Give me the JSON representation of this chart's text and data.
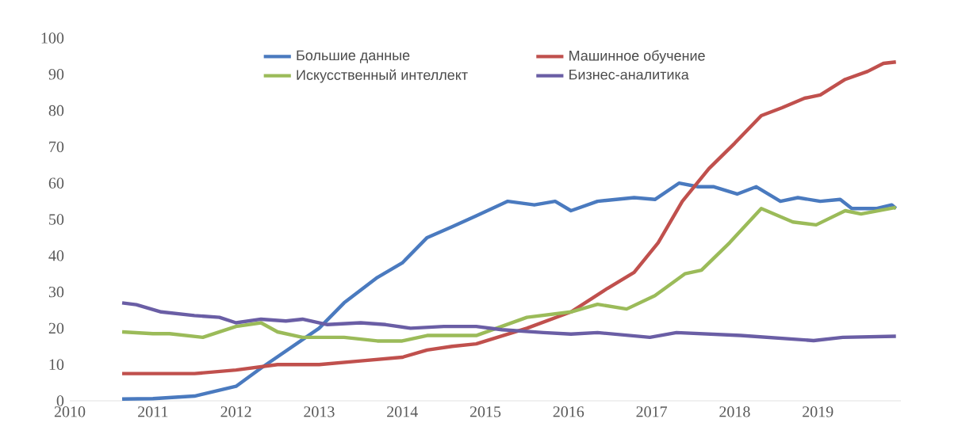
{
  "chart_data": {
    "type": "line",
    "xlim": [
      2010,
      2020
    ],
    "ylim": [
      0,
      100
    ],
    "xticks": [
      2010,
      2011,
      2012,
      2013,
      2014,
      2015,
      2016,
      2017,
      2018,
      2019
    ],
    "yticks": [
      0,
      10,
      20,
      30,
      40,
      50,
      60,
      70,
      80,
      90,
      100
    ],
    "grid": false,
    "legend": "top",
    "marker": "none",
    "line_style": "solid",
    "series": [
      {
        "name": "Большие данные",
        "color": "#4a7abf",
        "x": [
          2010.63,
          2011.0,
          2011.5,
          2012.0,
          2012.3,
          2013.0,
          2013.3,
          2013.7,
          2014.0,
          2014.3,
          2014.6,
          2014.89,
          2015.27,
          2015.59,
          2015.84,
          2016.03,
          2016.35,
          2016.79,
          2017.04,
          2017.33,
          2017.56,
          2017.75,
          2018.03,
          2018.26,
          2018.55,
          2018.76,
          2019.03,
          2019.27,
          2019.41,
          2019.71,
          2019.89,
          2019.94
        ],
        "values": [
          0.5,
          0.6,
          1.3,
          4,
          9,
          20,
          27,
          34,
          38,
          45,
          48,
          51,
          55,
          54,
          55,
          52.4,
          55,
          56,
          55.5,
          60,
          59,
          59,
          57,
          59,
          55,
          56,
          55,
          55.5,
          53,
          53,
          54,
          53
        ]
      },
      {
        "name": "Машинное обучение",
        "color": "#c0504d",
        "x": [
          2010.63,
          2011.0,
          2011.5,
          2012.0,
          2012.5,
          2013.0,
          2013.5,
          2014.0,
          2014.3,
          2014.6,
          2014.89,
          2015.5,
          2016.03,
          2016.47,
          2016.79,
          2017.08,
          2017.37,
          2017.69,
          2018.0,
          2018.32,
          2018.57,
          2018.84,
          2019.03,
          2019.33,
          2019.6,
          2019.79,
          2019.94
        ],
        "values": [
          7.5,
          7.5,
          7.5,
          8.5,
          10,
          10,
          11,
          12,
          14,
          15,
          15.7,
          20,
          24.5,
          31,
          35.4,
          43.6,
          55,
          64,
          71,
          78.6,
          80.8,
          83.4,
          84.3,
          88.6,
          90.8,
          93,
          93.4
        ]
      },
      {
        "name": "Искусственный интеллект",
        "color": "#9bbb59",
        "x": [
          2010.63,
          2011.0,
          2011.2,
          2011.6,
          2012.0,
          2012.3,
          2012.5,
          2012.8,
          2013.3,
          2013.7,
          2014.0,
          2014.3,
          2014.6,
          2014.89,
          2015.5,
          2016.03,
          2016.35,
          2016.7,
          2017.04,
          2017.4,
          2017.6,
          2017.94,
          2018.32,
          2018.7,
          2018.98,
          2019.33,
          2019.52,
          2019.94
        ],
        "values": [
          19,
          18.5,
          18.5,
          17.5,
          20.5,
          21.5,
          19,
          17.5,
          17.5,
          16.5,
          16.5,
          18,
          18,
          18,
          23,
          24.5,
          26.6,
          25.3,
          29,
          35,
          36,
          43.6,
          53,
          49.3,
          48.5,
          52.4,
          51.5,
          53.3
        ]
      },
      {
        "name": "Бизнес-аналитика",
        "color": "#6a5ea5",
        "x": [
          2010.63,
          2010.8,
          2011.1,
          2011.5,
          2011.8,
          2012.0,
          2012.3,
          2012.6,
          2012.8,
          2013.1,
          2013.5,
          2013.8,
          2014.1,
          2014.5,
          2014.89,
          2015.2,
          2015.7,
          2016.03,
          2016.35,
          2016.98,
          2017.3,
          2018.07,
          2018.95,
          2019.3,
          2019.94
        ],
        "values": [
          27,
          26.5,
          24.5,
          23.5,
          23,
          21.5,
          22.5,
          22,
          22.5,
          21,
          21.5,
          21,
          20,
          20.5,
          20.5,
          19.6,
          18.8,
          18.4,
          18.8,
          17.5,
          18.8,
          18,
          16.6,
          17.5,
          17.8
        ]
      }
    ]
  }
}
